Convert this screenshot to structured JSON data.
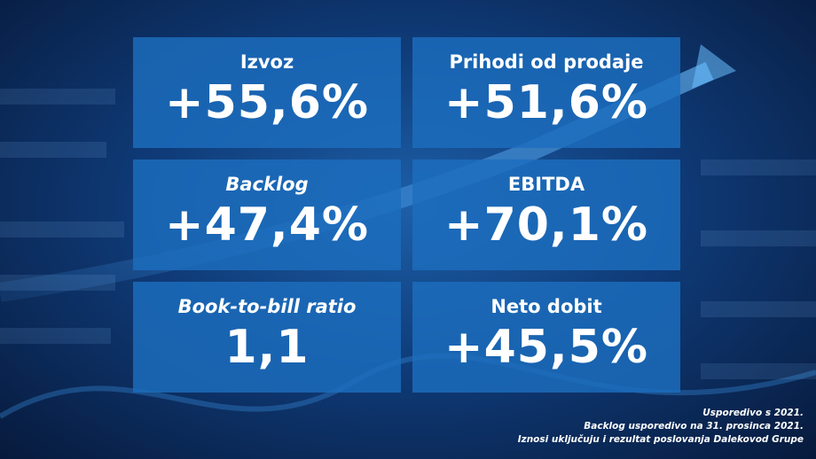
{
  "tiles": [
    {
      "label": "Izvoz",
      "value": "+55,6%"
    },
    {
      "label": "Prihodi od prodaje",
      "value": "+51,6%"
    },
    {
      "label": "Backlog",
      "value": "+47,4%"
    },
    {
      "label": "EBITDA",
      "value": "+70,1%"
    },
    {
      "label": "Book-to-bill ratio",
      "value": "1,1"
    },
    {
      "label": "Neto dobit",
      "value": "+45,5%"
    }
  ],
  "notes": [
    "Usporedivo s 2021.",
    "Backlog usporedivo na 31. prosinca 2021.",
    "Iznosi uključuju i rezultat poslovanja Dalekovod Grupe"
  ]
}
